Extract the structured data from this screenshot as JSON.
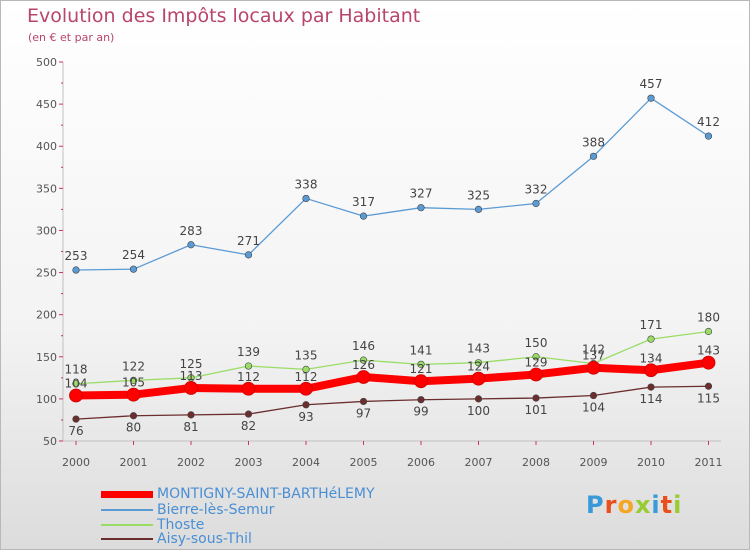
{
  "header": {
    "title": "Evolution des Impôts locaux par Habitant",
    "subtitle": "(en € et par an)"
  },
  "colors": {
    "title": "#b8456b",
    "legend_text": "#4a8fd4",
    "montigny": "#ff0000",
    "bierre": "#5b9bd5",
    "thoste": "#99dd66",
    "aisy": "#6b2e2e"
  },
  "logo": {
    "text": "Proxiti",
    "letter_colors": [
      "#3a9ad9",
      "#e94e1b",
      "#f5a623",
      "#9c3",
      "#3a9ad9",
      "#e94e1b",
      "#9c3"
    ]
  },
  "chart_data": {
    "type": "line",
    "title": "Evolution des Impôts locaux par Habitant",
    "subtitle": "(en € et par an)",
    "x": [
      "2000",
      "2001",
      "2002",
      "2003",
      "2004",
      "2005",
      "2006",
      "2007",
      "2008",
      "2009",
      "2010",
      "2011"
    ],
    "ylim": [
      50,
      500
    ],
    "yticks": [
      50,
      100,
      150,
      200,
      250,
      300,
      350,
      400,
      450,
      500
    ],
    "grid": false,
    "legend_position": "bottom",
    "series": [
      {
        "name": "MONTIGNY-SAINT-BARTHéLEMY",
        "color": "#ff0000",
        "values": [
          104,
          105,
          113,
          112,
          112,
          126,
          121,
          124,
          129,
          137,
          134,
          143
        ],
        "labels": [
          "104",
          "105",
          "113",
          "112",
          "112",
          "126",
          "121",
          "124",
          "129",
          "137",
          "134",
          "143"
        ]
      },
      {
        "name": "Bierre-lès-Semur",
        "color": "#5b9bd5",
        "values": [
          253,
          254,
          283,
          271,
          338,
          317,
          327,
          325,
          332,
          388,
          457,
          412
        ],
        "labels": [
          "253",
          "254",
          "283",
          "271",
          "338",
          "317",
          "327",
          "325",
          "332",
          "388",
          "457",
          "412"
        ]
      },
      {
        "name": "Thoste",
        "color": "#99dd66",
        "values": [
          118,
          122,
          125,
          139,
          135,
          146,
          141,
          143,
          150,
          142,
          171,
          180
        ],
        "labels": [
          "118",
          "122",
          "125",
          "139",
          "135",
          "146",
          "141",
          "143",
          "150",
          "142",
          "171",
          "180"
        ]
      },
      {
        "name": "Aisy-sous-Thil",
        "color": "#6b2e2e",
        "values": [
          76,
          80,
          81,
          82,
          93,
          97,
          99,
          100,
          101,
          104,
          114,
          115
        ],
        "labels": [
          "76",
          "80",
          "81",
          "82",
          "93",
          "97",
          "99",
          "100",
          "101",
          "104",
          "114",
          "115"
        ]
      }
    ]
  }
}
